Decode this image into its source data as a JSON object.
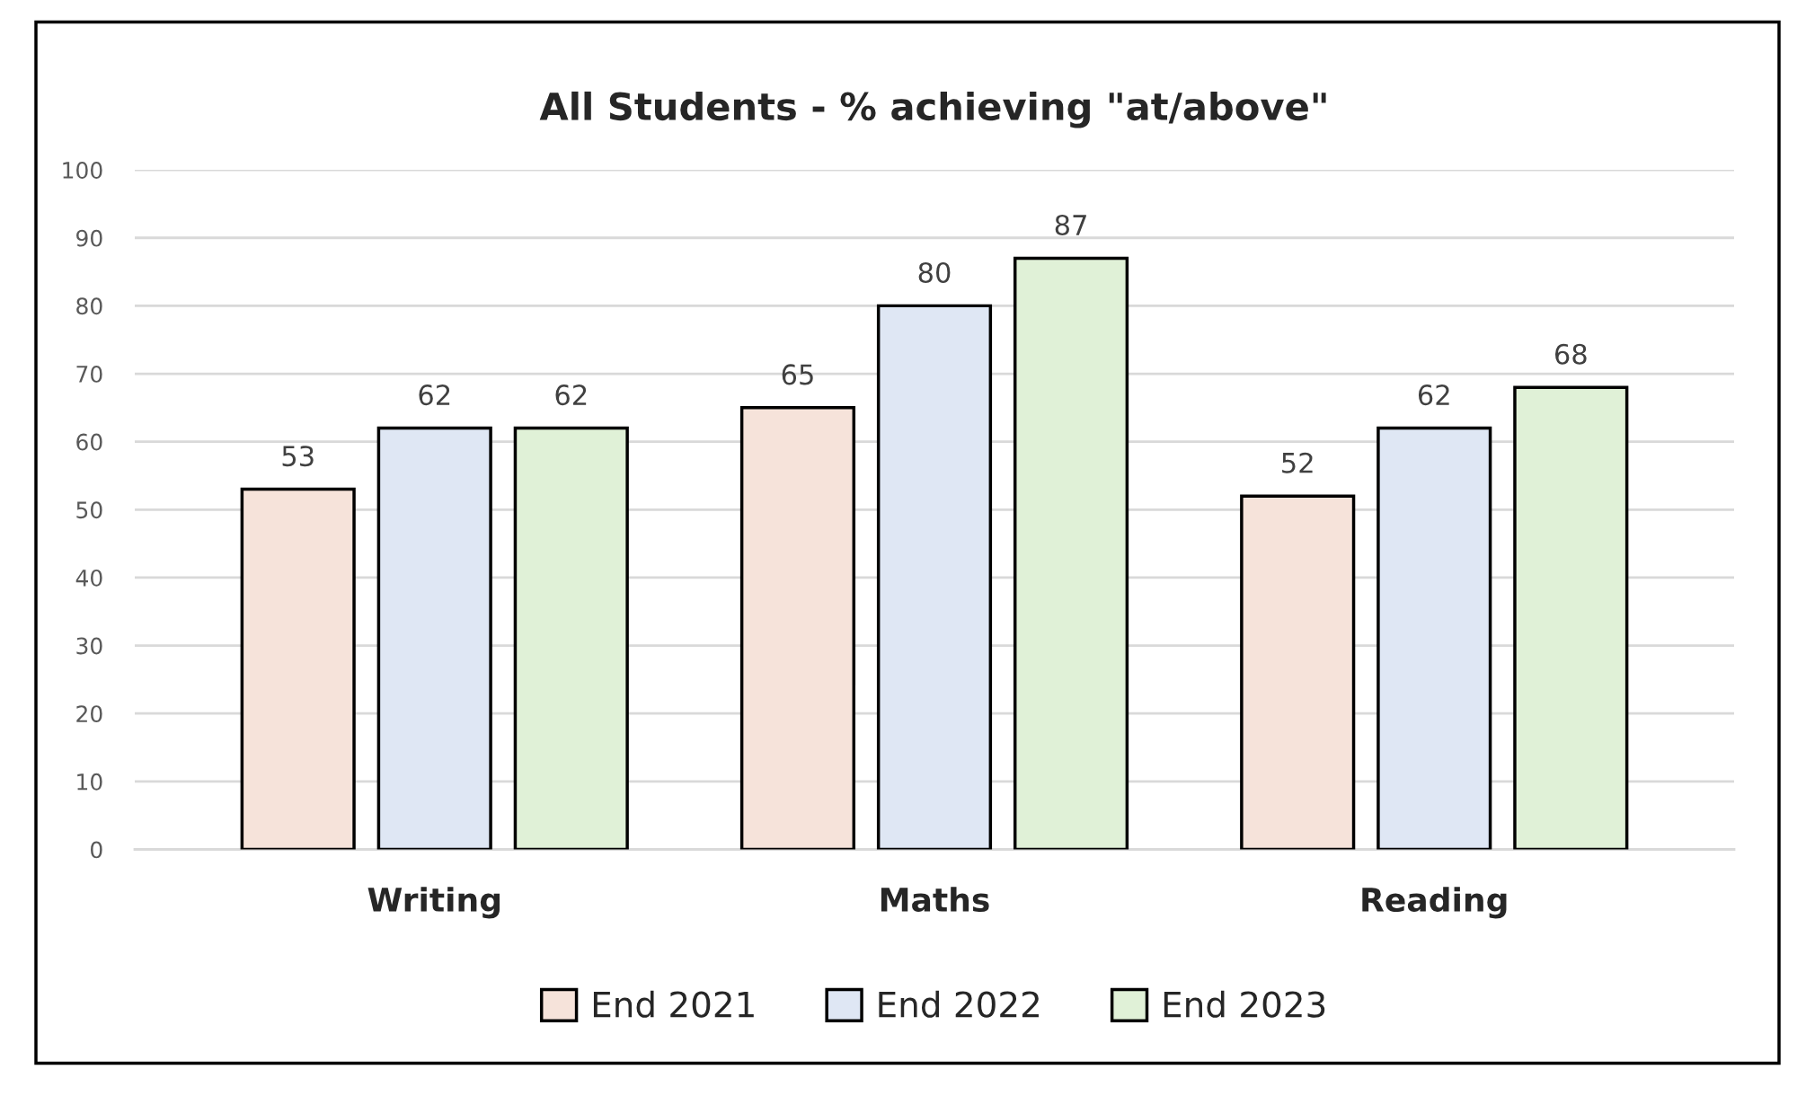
{
  "chart_data": {
    "type": "bar",
    "title": "All Students - % achieving \"at/above\"",
    "categories": [
      "Writing",
      "Maths",
      "Reading"
    ],
    "series": [
      {
        "name": "End 2021",
        "color": "#f6e3da",
        "values": [
          53,
          65,
          52
        ]
      },
      {
        "name": "End 2022",
        "color": "#dfe7f4",
        "values": [
          62,
          80,
          62
        ]
      },
      {
        "name": "End 2023",
        "color": "#e0f1d7",
        "values": [
          62,
          87,
          68
        ]
      }
    ],
    "ylim": [
      0,
      100
    ],
    "yticks": [
      0,
      10,
      20,
      30,
      40,
      50,
      60,
      70,
      80,
      90,
      100
    ],
    "grid": "y",
    "legend": "bottom",
    "data_labels": true
  }
}
